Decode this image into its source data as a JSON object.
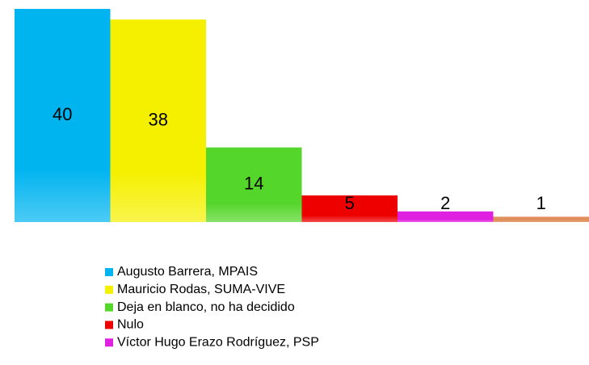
{
  "chart_data": {
    "type": "bar",
    "categories": [
      "Augusto Barrera, MPAIS",
      "Mauricio Rodas, SUMA-VIVE",
      "Deja en blanco, no ha decidido",
      "Nulo",
      "Víctor Hugo Erazo Rodríguez, PSP",
      null
    ],
    "values": [
      40,
      38,
      14,
      5,
      2,
      1
    ],
    "colors": [
      "#00b4f0",
      "#f5f000",
      "#55d62a",
      "#ee0000",
      "#e020e0",
      "#e0905a"
    ]
  }
}
